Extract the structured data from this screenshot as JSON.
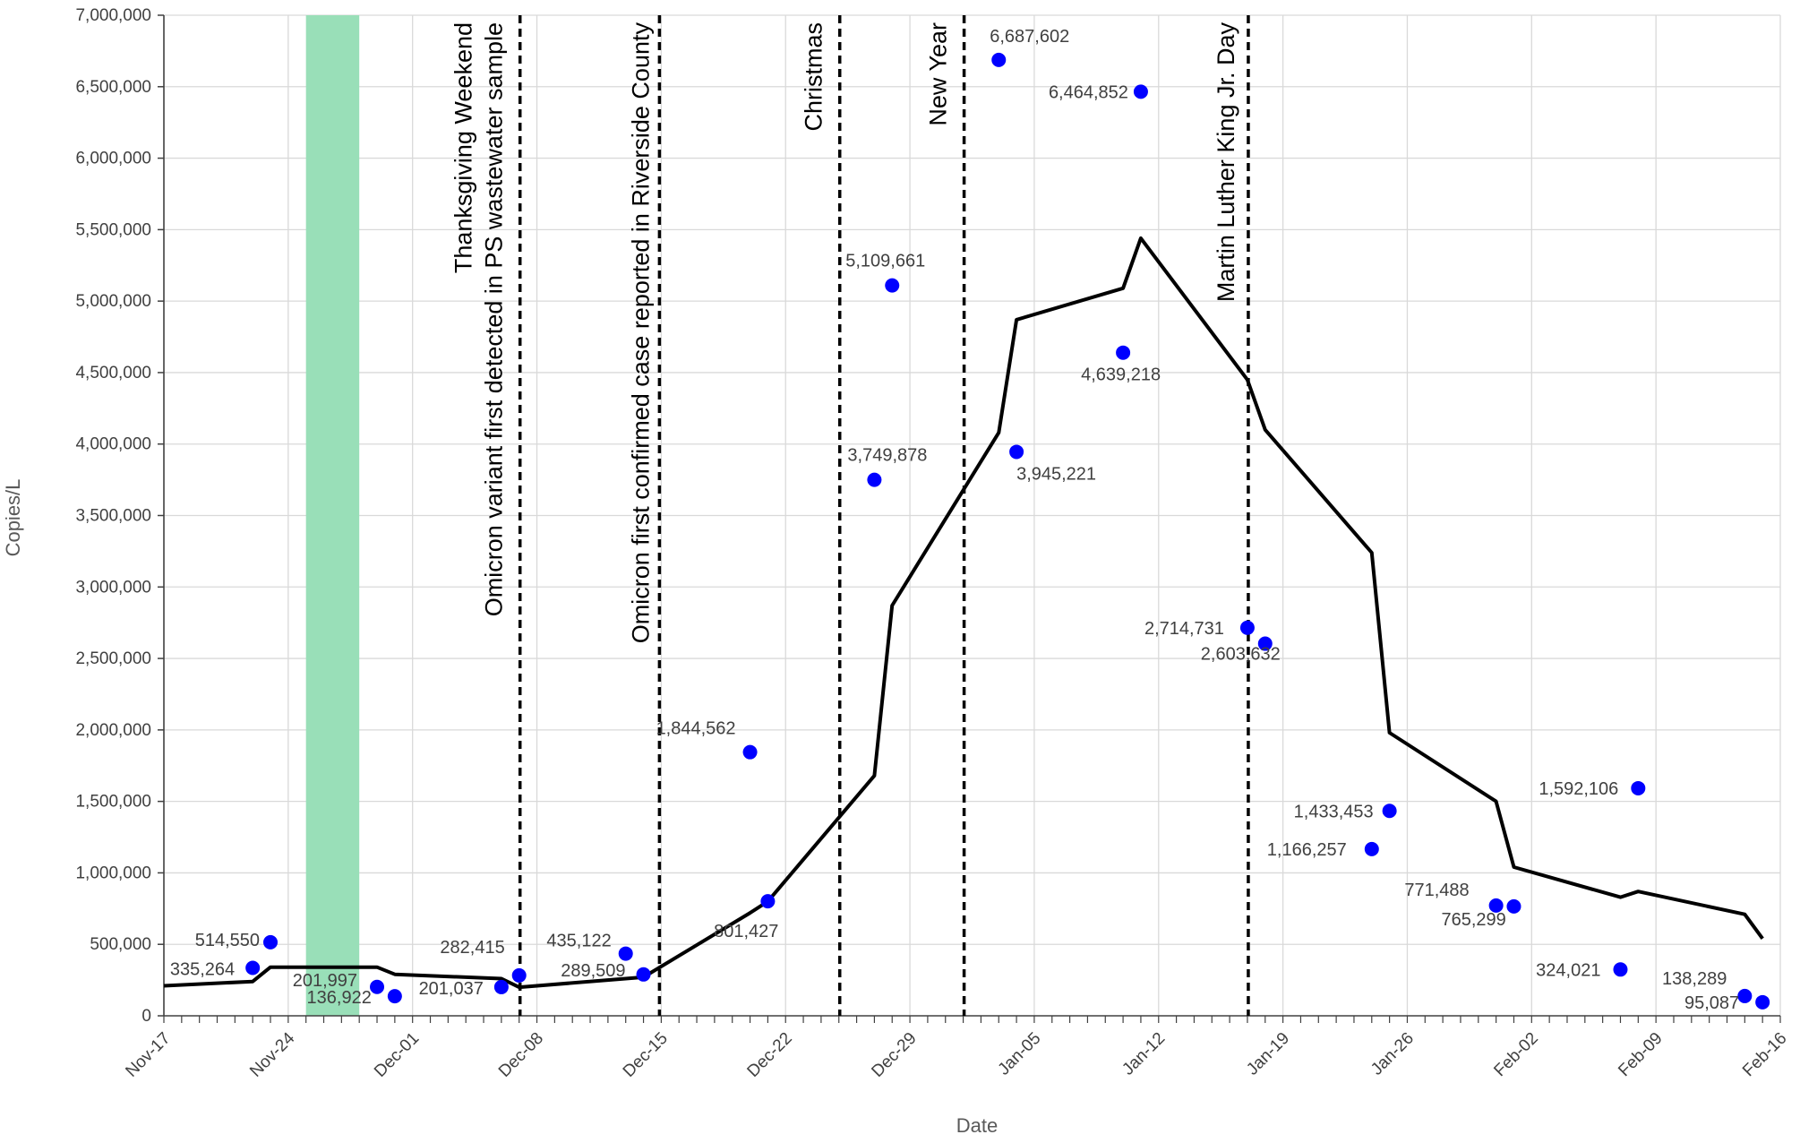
{
  "chart_data": {
    "type": "scatter",
    "xlabel": "Date",
    "ylabel": "Copies/L",
    "ylim": [
      0,
      7000000
    ],
    "yticks": [
      0,
      500000,
      1000000,
      1500000,
      2000000,
      2500000,
      3000000,
      3500000,
      4000000,
      4500000,
      5000000,
      5500000,
      6000000,
      6500000,
      7000000
    ],
    "ytick_labels": [
      "0",
      "500,000",
      "1,000,000",
      "1,500,000",
      "2,000,000",
      "2,500,000",
      "3,000,000",
      "3,500,000",
      "4,000,000",
      "4,500,000",
      "5,000,000",
      "5,500,000",
      "6,000,000",
      "6,500,000",
      "7,000,000"
    ],
    "xlim": [
      "2021-11-17",
      "2022-02-16"
    ],
    "xtick_dates": [
      "2021-11-17",
      "2021-11-24",
      "2021-12-01",
      "2021-12-08",
      "2021-12-15",
      "2021-12-22",
      "2021-12-29",
      "2022-01-05",
      "2022-01-12",
      "2022-01-19",
      "2022-01-26",
      "2022-02-02",
      "2022-02-09",
      "2022-02-16"
    ],
    "xtick_labels": [
      "Nov-17",
      "Nov-24",
      "Dec-01",
      "Dec-08",
      "Dec-15",
      "Dec-22",
      "Dec-29",
      "Jan-05",
      "Jan-12",
      "Jan-19",
      "Jan-26",
      "Feb-02",
      "Feb-09",
      "Feb-16"
    ],
    "grid": true,
    "colors": {
      "points": "#0000ff",
      "line": "#000000",
      "shade": "#99dfb8",
      "grid": "#d9d9d9"
    },
    "shaded_region": {
      "x": [
        "2021-11-25",
        "2021-11-28"
      ]
    },
    "events": [
      {
        "date": "2021-12-07",
        "label": "Omicron variant first detected in PS wastewater sample"
      },
      {
        "date": "2021-12-07",
        "label": "Thanksgiving Weekend"
      },
      {
        "date": "2021-12-15",
        "label": "Omicron first confirmed case reported in Riverside County"
      },
      {
        "date": "2021-12-25",
        "label": "Christmas"
      },
      {
        "date": "2022-01-01",
        "label": "New Year"
      },
      {
        "date": "2022-01-17",
        "label": "Martin Luther King Jr. Day"
      }
    ],
    "series": [
      {
        "type": "scatter",
        "points": [
          {
            "x": "2021-11-22",
            "y": 335264,
            "label": "335,264"
          },
          {
            "x": "2021-11-23",
            "y": 514550,
            "label": "514,550"
          },
          {
            "x": "2021-11-29",
            "y": 201997,
            "label": "201,997"
          },
          {
            "x": "2021-11-30",
            "y": 136922,
            "label": "136,922"
          },
          {
            "x": "2021-12-06",
            "y": 201037,
            "label": "201,037"
          },
          {
            "x": "2021-12-07",
            "y": 282415,
            "label": "282,415"
          },
          {
            "x": "2021-12-13",
            "y": 435122,
            "label": "435,122"
          },
          {
            "x": "2021-12-14",
            "y": 289509,
            "label": "289,509"
          },
          {
            "x": "2021-12-20",
            "y": 1844562,
            "label": "1,844,562"
          },
          {
            "x": "2021-12-21",
            "y": 801427,
            "label": "801,427"
          },
          {
            "x": "2021-12-27",
            "y": 3749878,
            "label": "3,749,878"
          },
          {
            "x": "2021-12-28",
            "y": 5109661,
            "label": "5,109,661"
          },
          {
            "x": "2022-01-03",
            "y": 6687602,
            "label": "6,687,602"
          },
          {
            "x": "2022-01-04",
            "y": 3945221,
            "label": "3,945,221"
          },
          {
            "x": "2022-01-10",
            "y": 4639218,
            "label": "4,639,218"
          },
          {
            "x": "2022-01-11",
            "y": 6464852,
            "label": "6,464,852"
          },
          {
            "x": "2022-01-17",
            "y": 2714731,
            "label": "2,714,731"
          },
          {
            "x": "2022-01-18",
            "y": 2603632,
            "label": "2,603,632"
          },
          {
            "x": "2022-01-24",
            "y": 1166257,
            "label": "1,166,257"
          },
          {
            "x": "2022-01-25",
            "y": 1433453,
            "label": "1,433,453"
          },
          {
            "x": "2022-01-31",
            "y": 771488,
            "label": "771,488"
          },
          {
            "x": "2022-02-01",
            "y": 765299,
            "label": "765,299"
          },
          {
            "x": "2022-02-07",
            "y": 324021,
            "label": "324,021"
          },
          {
            "x": "2022-02-08",
            "y": 1592106,
            "label": "1,592,106"
          },
          {
            "x": "2022-02-14",
            "y": 138289,
            "label": "138,289"
          },
          {
            "x": "2022-02-15",
            "y": 95087,
            "label": "95,087"
          }
        ]
      },
      {
        "type": "line",
        "points": [
          {
            "x": "2021-11-17",
            "y": 210000
          },
          {
            "x": "2021-11-22",
            "y": 240000
          },
          {
            "x": "2021-11-23",
            "y": 340000
          },
          {
            "x": "2021-11-29",
            "y": 340000
          },
          {
            "x": "2021-11-30",
            "y": 290000
          },
          {
            "x": "2021-12-06",
            "y": 260000
          },
          {
            "x": "2021-12-07",
            "y": 200000
          },
          {
            "x": "2021-12-13",
            "y": 260000
          },
          {
            "x": "2021-12-14",
            "y": 270000
          },
          {
            "x": "2021-12-20",
            "y": 720000
          },
          {
            "x": "2021-12-21",
            "y": 800000
          },
          {
            "x": "2021-12-27",
            "y": 1680000
          },
          {
            "x": "2021-12-28",
            "y": 2870000
          },
          {
            "x": "2022-01-03",
            "y": 4080000
          },
          {
            "x": "2022-01-04",
            "y": 4870000
          },
          {
            "x": "2022-01-10",
            "y": 5090000
          },
          {
            "x": "2022-01-11",
            "y": 5440000
          },
          {
            "x": "2022-01-17",
            "y": 4450000
          },
          {
            "x": "2022-01-18",
            "y": 4100000
          },
          {
            "x": "2022-01-24",
            "y": 3240000
          },
          {
            "x": "2022-01-25",
            "y": 1980000
          },
          {
            "x": "2022-01-31",
            "y": 1500000
          },
          {
            "x": "2022-02-01",
            "y": 1040000
          },
          {
            "x": "2022-02-07",
            "y": 830000
          },
          {
            "x": "2022-02-08",
            "y": 870000
          },
          {
            "x": "2022-02-14",
            "y": 710000
          },
          {
            "x": "2022-02-15",
            "y": 540000
          }
        ]
      }
    ]
  }
}
